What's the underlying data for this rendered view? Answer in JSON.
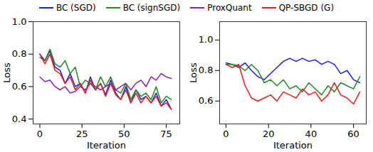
{
  "chart_data": [
    {
      "type": "line",
      "legend": "top",
      "x_label": "Iteration",
      "y_label": "Loss",
      "xlim": [
        -4,
        83
      ],
      "xticks": [
        0,
        25,
        50,
        75
      ],
      "ylim": [
        0.37,
        1.0
      ],
      "yticks": [
        0.4,
        0.6,
        0.8,
        {
          "value": 1.0,
          "label": "1.0"
        }
      ],
      "x": [
        0,
        3,
        6,
        9,
        12,
        15,
        18,
        21,
        24,
        27,
        30,
        33,
        36,
        39,
        42,
        45,
        48,
        51,
        54,
        57,
        60,
        63,
        66,
        69,
        72,
        75,
        78
      ],
      "series": [
        {
          "name": "BC (SGD)",
          "color": "#1f1fe0",
          "values": [
            0.8,
            0.76,
            0.82,
            0.72,
            0.7,
            0.62,
            0.68,
            0.6,
            0.62,
            0.56,
            0.66,
            0.58,
            0.62,
            0.55,
            0.64,
            0.56,
            0.52,
            0.6,
            0.5,
            0.58,
            0.52,
            0.54,
            0.5,
            0.56,
            0.48,
            0.52,
            0.46
          ]
        },
        {
          "name": "BC (signSGD)",
          "color": "#228b22",
          "values": [
            0.78,
            0.76,
            0.83,
            0.74,
            0.72,
            0.76,
            0.68,
            0.72,
            0.6,
            0.64,
            0.62,
            0.58,
            0.66,
            0.6,
            0.66,
            0.58,
            0.56,
            0.62,
            0.52,
            0.58,
            0.54,
            0.56,
            0.52,
            0.6,
            0.5,
            0.54,
            0.52
          ]
        },
        {
          "name": "ProxQuant",
          "color": "#8e24aa",
          "values": [
            0.66,
            0.63,
            0.64,
            0.6,
            0.58,
            0.6,
            0.56,
            0.57,
            0.6,
            0.58,
            0.62,
            0.6,
            0.58,
            0.6,
            0.62,
            0.58,
            0.6,
            0.62,
            0.58,
            0.62,
            0.64,
            0.6,
            0.66,
            0.64,
            0.68,
            0.66,
            0.65
          ]
        },
        {
          "name": "QP-SBGD (G)",
          "color": "#ee1c1c",
          "values": [
            0.8,
            0.74,
            0.8,
            0.7,
            0.68,
            0.62,
            0.66,
            0.58,
            0.62,
            0.56,
            0.64,
            0.58,
            0.62,
            0.54,
            0.62,
            0.55,
            0.52,
            0.58,
            0.5,
            0.56,
            0.5,
            0.54,
            0.5,
            0.54,
            0.48,
            0.5,
            0.46
          ]
        }
      ]
    },
    {
      "type": "line",
      "x_label": "Iteration",
      "y_label": "Loss",
      "xlim": [
        -3,
        66
      ],
      "xticks": [
        0,
        20,
        40,
        60
      ],
      "ylim": [
        0.45,
        1.12
      ],
      "yticks": [
        0.6,
        0.8,
        {
          "value": 1.0,
          "label": "1.0"
        }
      ],
      "x": [
        0,
        3,
        6,
        9,
        12,
        15,
        18,
        21,
        24,
        27,
        30,
        33,
        36,
        39,
        42,
        45,
        48,
        51,
        54,
        57,
        60,
        63
      ],
      "series": [
        {
          "name": "BC (SGD)",
          "color": "#1f1fe0",
          "values": [
            0.85,
            0.84,
            0.82,
            0.85,
            0.8,
            0.76,
            0.74,
            0.78,
            0.82,
            0.86,
            0.88,
            0.86,
            0.88,
            0.86,
            0.87,
            0.84,
            0.86,
            0.84,
            0.78,
            0.8,
            0.74,
            0.72
          ]
        },
        {
          "name": "BC (signSGD)",
          "color": "#228b22",
          "values": [
            0.84,
            0.84,
            0.83,
            0.8,
            0.84,
            0.8,
            0.72,
            0.74,
            0.7,
            0.74,
            0.68,
            0.7,
            0.66,
            0.72,
            0.68,
            0.64,
            0.7,
            0.66,
            0.72,
            0.7,
            0.68,
            0.76
          ]
        },
        {
          "name": "QP-SBGD (G)",
          "color": "#ee1c1c",
          "values": [
            0.84,
            0.82,
            0.84,
            0.7,
            0.62,
            0.6,
            0.62,
            0.64,
            0.6,
            0.66,
            0.64,
            0.62,
            0.68,
            0.64,
            0.66,
            0.6,
            0.64,
            0.72,
            0.64,
            0.62,
            0.58,
            0.66
          ]
        }
      ]
    }
  ]
}
